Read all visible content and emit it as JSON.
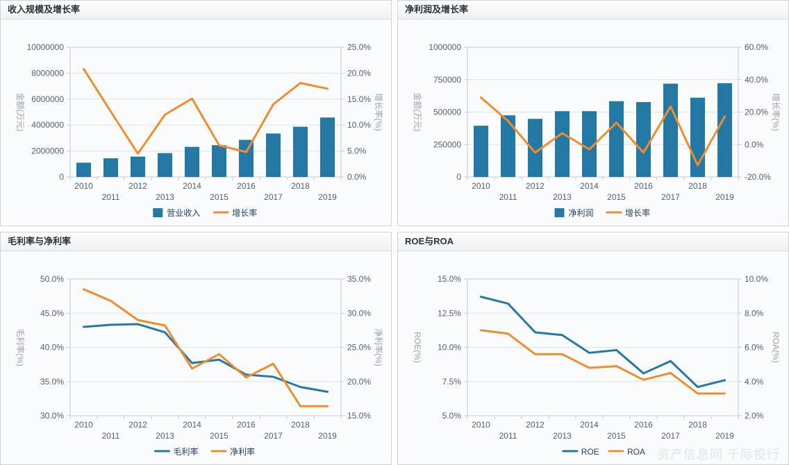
{
  "watermark": "资产信息网 千际投行",
  "colors": {
    "series_blue": "#2478a4",
    "series_orange": "#ef8c2e",
    "grid_line": "#dcdfe3",
    "axis_line": "#c6cbd1",
    "tick_text": "#51606e",
    "axis_name_text": "#98a2ac",
    "legend_text": "#23415a"
  },
  "chart_data": [
    {
      "type": "bar",
      "title": "收入规模及增长率",
      "categories": [
        "2010",
        "2011",
        "2012",
        "2013",
        "2014",
        "2015",
        "2016",
        "2017",
        "2018",
        "2019"
      ],
      "left_axis": {
        "name": "金额(万元)",
        "min": 0,
        "max": 10000000,
        "step": 2000000,
        "format": "int"
      },
      "right_axis": {
        "name": "增长率(%)",
        "min": 0,
        "max": 25,
        "step": 5,
        "format": "pct1"
      },
      "grid": true,
      "legend_position": "bottom",
      "series": [
        {
          "name": "营业收入",
          "type": "bar",
          "axis": "left",
          "color": "#2478a4",
          "values": [
            1100000,
            1440000,
            1570000,
            1840000,
            2320000,
            2450000,
            2860000,
            3350000,
            3870000,
            4580000
          ]
        },
        {
          "name": "增长率",
          "type": "line",
          "axis": "right",
          "color": "#ef8c2e",
          "values": [
            20.8,
            12.6,
            4.5,
            12.0,
            15.1,
            6.1,
            4.8,
            14.0,
            18.1,
            17.0
          ]
        }
      ]
    },
    {
      "type": "bar",
      "title": "净利润及增长率",
      "categories": [
        "2010",
        "2011",
        "2012",
        "2013",
        "2014",
        "2015",
        "2016",
        "2017",
        "2018",
        "2019"
      ],
      "left_axis": {
        "name": "金额(万元)",
        "min": 0,
        "max": 1000000,
        "step": 250000,
        "format": "int"
      },
      "right_axis": {
        "name": "增长率(%)",
        "min": -20,
        "max": 60,
        "step": 20,
        "format": "pct1"
      },
      "grid": true,
      "legend_position": "bottom",
      "series": [
        {
          "name": "净利润",
          "type": "bar",
          "axis": "left",
          "color": "#2478a4",
          "values": [
            395000,
            475000,
            448000,
            507000,
            507000,
            584000,
            577000,
            719000,
            611000,
            723000
          ]
        },
        {
          "name": "增长率",
          "type": "line",
          "axis": "right",
          "color": "#ef8c2e",
          "values": [
            29.0,
            14.5,
            -5.0,
            7.0,
            -3.0,
            13.5,
            -5.0,
            23.5,
            -12.8,
            17.3
          ]
        }
      ]
    },
    {
      "type": "line",
      "title": "毛利率与净利率",
      "categories": [
        "2010",
        "2011",
        "2012",
        "2013",
        "2014",
        "2015",
        "2016",
        "2017",
        "2018",
        "2019"
      ],
      "left_axis": {
        "name": "毛利率(%)",
        "min": 30,
        "max": 50,
        "step": 5,
        "format": "pct1"
      },
      "right_axis": {
        "name": "净利率(%)",
        "min": 15,
        "max": 35,
        "step": 5,
        "format": "pct1"
      },
      "grid": true,
      "legend_position": "bottom",
      "series": [
        {
          "name": "毛利率",
          "type": "line",
          "axis": "left",
          "color": "#2478a4",
          "values": [
            43.0,
            43.3,
            43.4,
            42.2,
            37.7,
            38.2,
            36.0,
            35.7,
            34.2,
            33.5
          ]
        },
        {
          "name": "净利率",
          "type": "line",
          "axis": "right",
          "color": "#ef8c2e",
          "values": [
            33.5,
            31.8,
            29.0,
            28.2,
            21.9,
            24.0,
            20.6,
            22.6,
            16.4,
            16.4
          ]
        }
      ]
    },
    {
      "type": "line",
      "title": "ROE与ROA",
      "categories": [
        "2010",
        "2011",
        "2012",
        "2013",
        "2014",
        "2015",
        "2016",
        "2017",
        "2018",
        "2019"
      ],
      "left_axis": {
        "name": "ROE(%)",
        "min": 5,
        "max": 15,
        "step": 2.5,
        "format": "pct1"
      },
      "right_axis": {
        "name": "ROA(%)",
        "min": 2,
        "max": 10,
        "step": 2,
        "format": "pct1"
      },
      "grid": true,
      "legend_position": "bottom",
      "series": [
        {
          "name": "ROE",
          "type": "line",
          "axis": "left",
          "color": "#2478a4",
          "values": [
            13.7,
            13.2,
            11.1,
            10.9,
            9.6,
            9.8,
            8.1,
            9.0,
            7.1,
            7.6
          ]
        },
        {
          "name": "ROA",
          "type": "line",
          "axis": "right",
          "color": "#ef8c2e",
          "values": [
            7.0,
            6.8,
            5.6,
            5.6,
            4.8,
            4.9,
            4.1,
            4.5,
            3.3,
            3.3
          ]
        }
      ]
    }
  ]
}
